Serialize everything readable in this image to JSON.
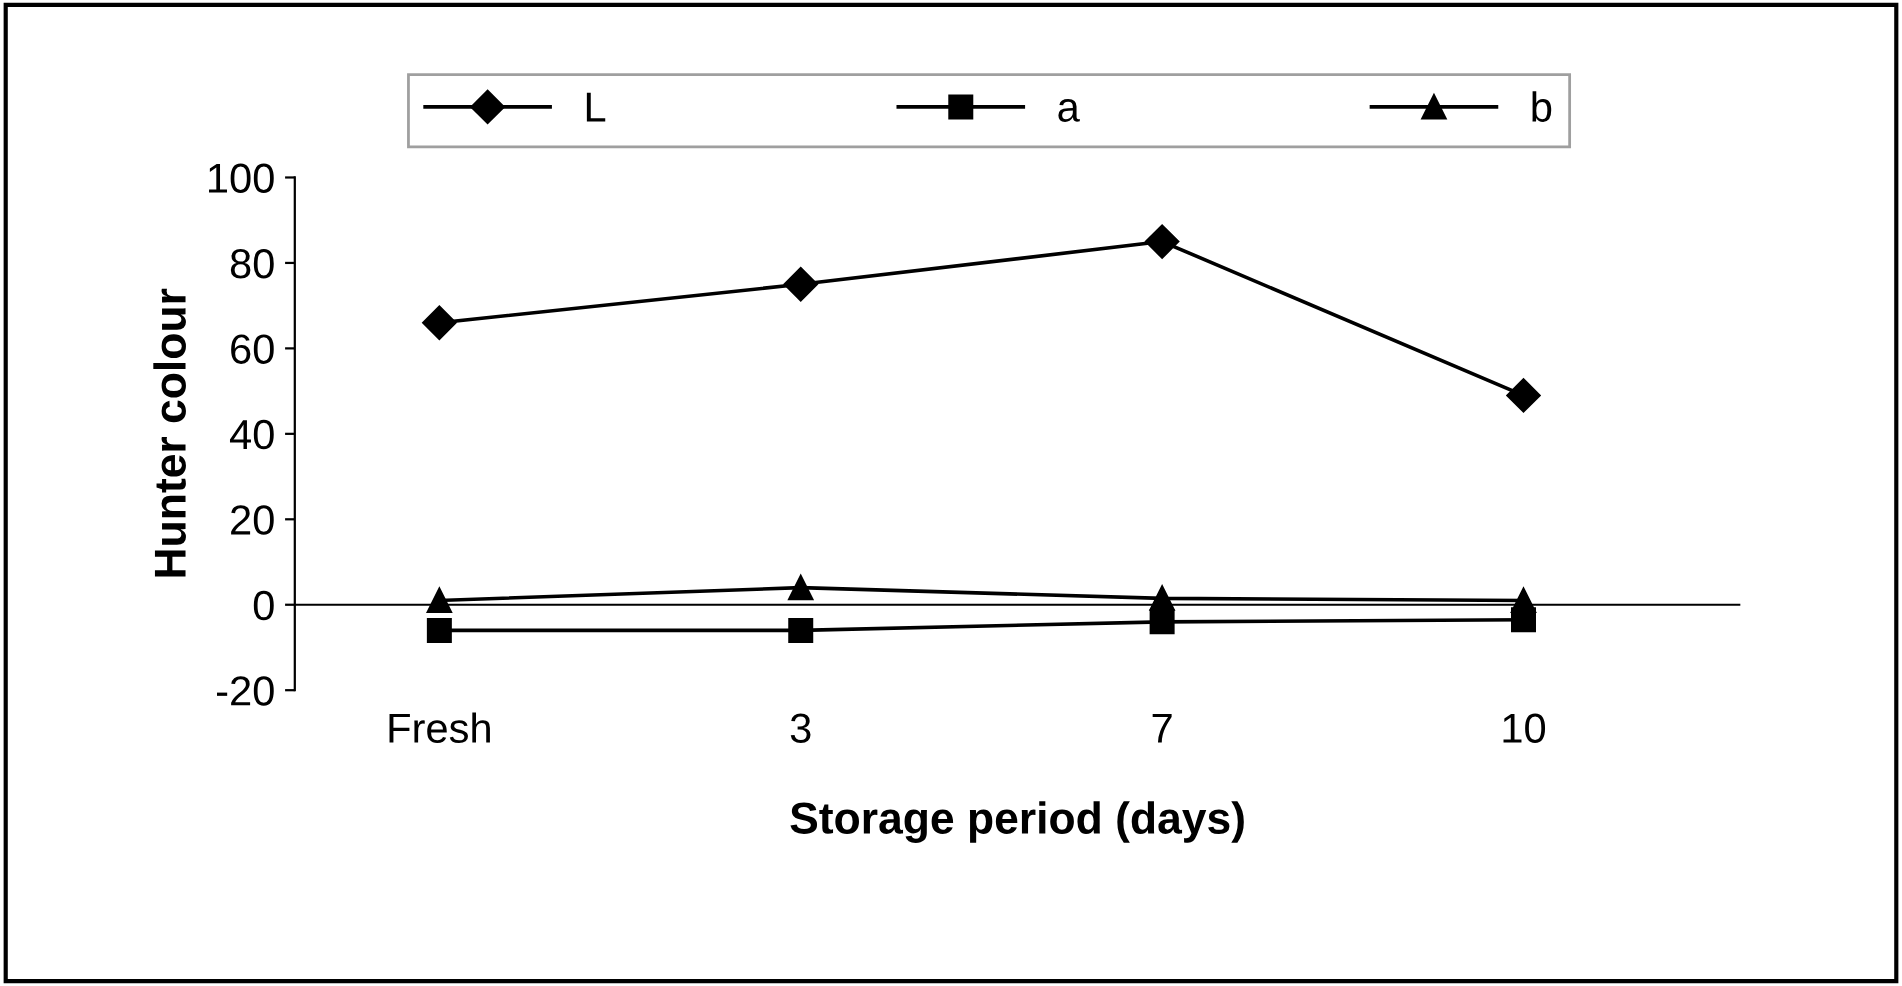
{
  "chart_data": {
    "type": "line",
    "xlabel": "Storage period (days)",
    "ylabel": "Hunter colour",
    "categories": [
      "Fresh",
      "3",
      "7",
      "10"
    ],
    "series": [
      {
        "name": "L",
        "color": "#000000",
        "values": [
          66,
          75,
          85,
          49
        ],
        "marker": "diamond"
      },
      {
        "name": "a",
        "color": "#000000",
        "values": [
          -6,
          -6,
          -4,
          -3.5
        ],
        "marker": "square"
      },
      {
        "name": "b",
        "color": "#000000",
        "values": [
          1,
          4,
          1.5,
          1
        ],
        "marker": "triangle"
      }
    ],
    "ylim": [
      -20,
      100
    ],
    "yticks": [
      -20,
      0,
      20,
      40,
      60,
      80,
      100
    ],
    "grid": false,
    "legend": "top",
    "line_style": "solid"
  }
}
